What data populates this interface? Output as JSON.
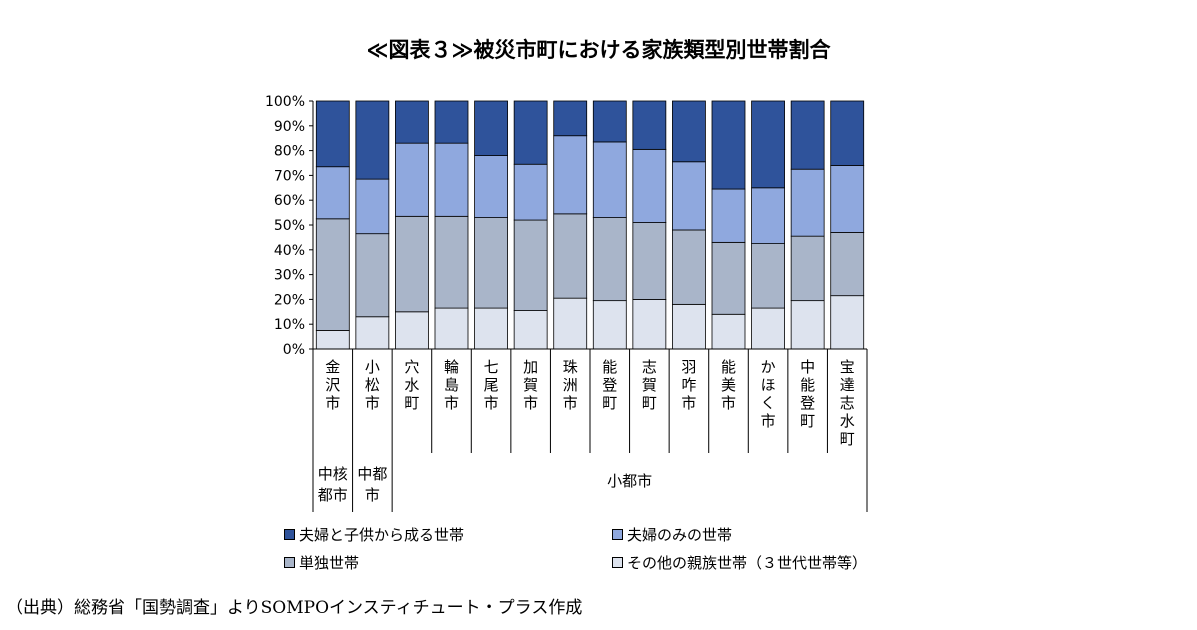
{
  "title": "≪図表３≫被災市町における家族類型別世帯割合",
  "source": "（出典）総務省「国勢調査」よりSOMPOインスティチュート・プラス作成",
  "chart_data": {
    "type": "bar",
    "stacked": true,
    "categories": [
      "金沢市",
      "小松市",
      "穴水町",
      "輪島市",
      "七尾市",
      "加賀市",
      "珠洲市",
      "能登町",
      "志賀町",
      "羽咋市",
      "能美市",
      "かほく市",
      "中能登町",
      "宝達志水町"
    ],
    "series": [
      {
        "name": "その他の親族世帯（３世代世帯等）",
        "color": "#dde3ee",
        "values": [
          7.5,
          13,
          15,
          16.5,
          16.5,
          15.5,
          20.5,
          19.5,
          20,
          18,
          14,
          16.5,
          19.5,
          21.5
        ]
      },
      {
        "name": "単独世帯",
        "color": "#a9b5c9",
        "values": [
          45,
          33.5,
          38.5,
          37,
          36.5,
          36.5,
          34,
          33.5,
          31,
          30,
          29,
          26,
          26,
          25.5
        ]
      },
      {
        "name": "夫婦のみの世帯",
        "color": "#8fa8de",
        "values": [
          21,
          22,
          29.5,
          29.5,
          25,
          22.5,
          31.5,
          30.5,
          29.5,
          27.5,
          21.5,
          22.5,
          27,
          27
        ]
      },
      {
        "name": "夫婦と子供から成る世帯",
        "color": "#2f539b",
        "values": [
          26.5,
          31.5,
          17,
          17,
          22,
          25.5,
          14,
          16.5,
          19.5,
          24.5,
          35.5,
          35,
          27.5,
          26
        ]
      }
    ],
    "ylim": [
      0,
      100
    ],
    "yticks": [
      "0%",
      "10%",
      "20%",
      "30%",
      "40%",
      "50%",
      "60%",
      "70%",
      "80%",
      "90%",
      "100%"
    ],
    "groups": [
      {
        "label": "中核都市",
        "lines": [
          "中核",
          "都市"
        ],
        "count": 1
      },
      {
        "label": "中都市",
        "lines": [
          "中都",
          "市"
        ],
        "count": 1
      },
      {
        "label": "小都市",
        "lines": [
          "小都市"
        ],
        "count": 12
      }
    ],
    "legend": [
      {
        "label": "夫婦と子供から成る世帯",
        "color": "#2f539b"
      },
      {
        "label": "夫婦のみの世帯",
        "color": "#8fa8de"
      },
      {
        "label": "単独世帯",
        "color": "#a9b5c9"
      },
      {
        "label": "その他の親族世帯（３世代世帯等）",
        "color": "#dde3ee"
      }
    ],
    "legend_position": "bottom",
    "grid": false
  }
}
